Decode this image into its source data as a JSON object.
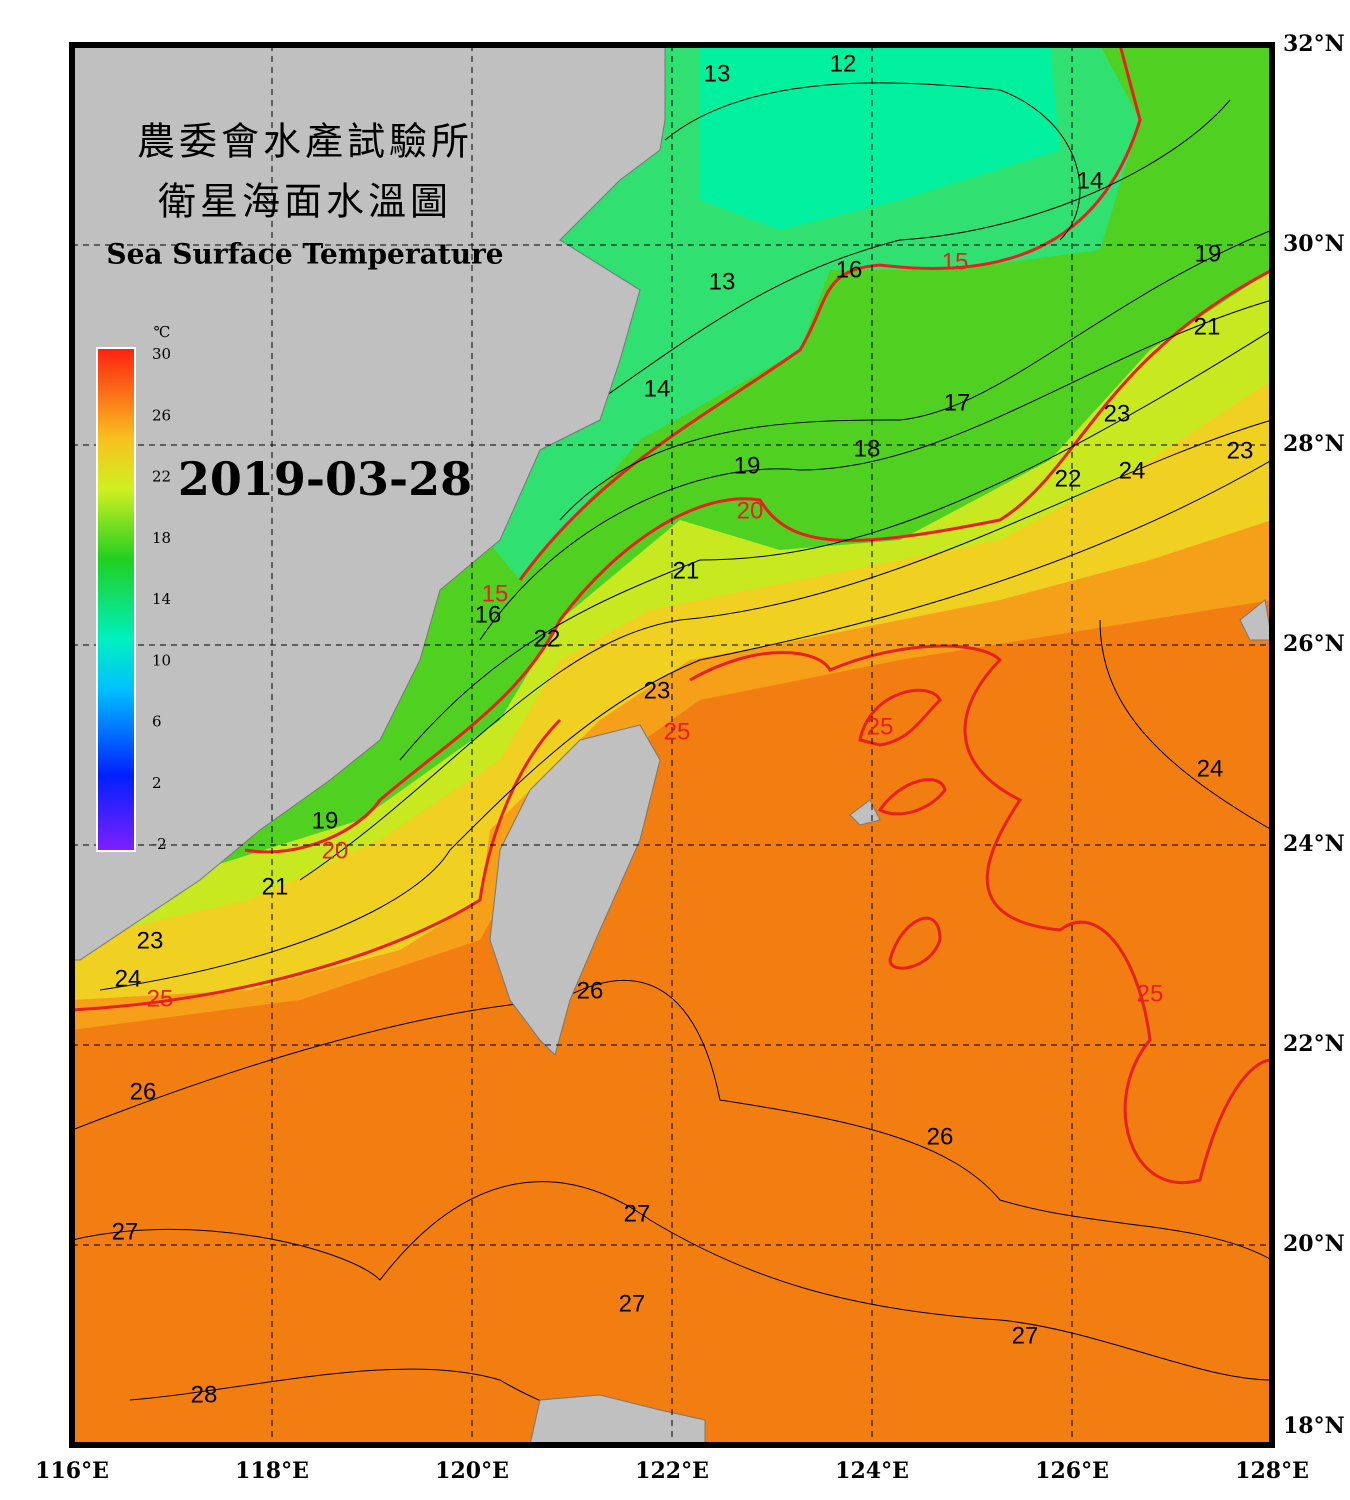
{
  "header": {
    "title_zh_1": "農委會水產試驗所",
    "title_zh_2": "衛星海面水溫圖",
    "title_en": "Sea Surface Temperature",
    "date": "2019-03-28"
  },
  "colorbar": {
    "unit": "℃",
    "ticks": [
      30,
      26,
      22,
      18,
      14,
      10,
      6,
      2,
      -2
    ]
  },
  "axes": {
    "lon_ticks": [
      "116°E",
      "118°E",
      "120°E",
      "122°E",
      "124°E",
      "126°E",
      "128°E"
    ],
    "lat_ticks": [
      "32°N",
      "30°N",
      "28°N",
      "26°N",
      "24°N",
      "22°N",
      "20°N",
      "18°N"
    ]
  },
  "contour_labels": [
    12,
    13,
    14,
    15,
    16,
    13,
    19,
    21,
    14,
    17,
    23,
    18,
    23,
    19,
    22,
    24,
    20,
    21,
    15,
    16,
    22,
    23,
    25,
    25,
    24,
    19,
    20,
    21,
    23,
    24,
    25,
    26,
    25,
    26,
    26,
    27,
    27,
    27,
    27,
    28
  ]
}
